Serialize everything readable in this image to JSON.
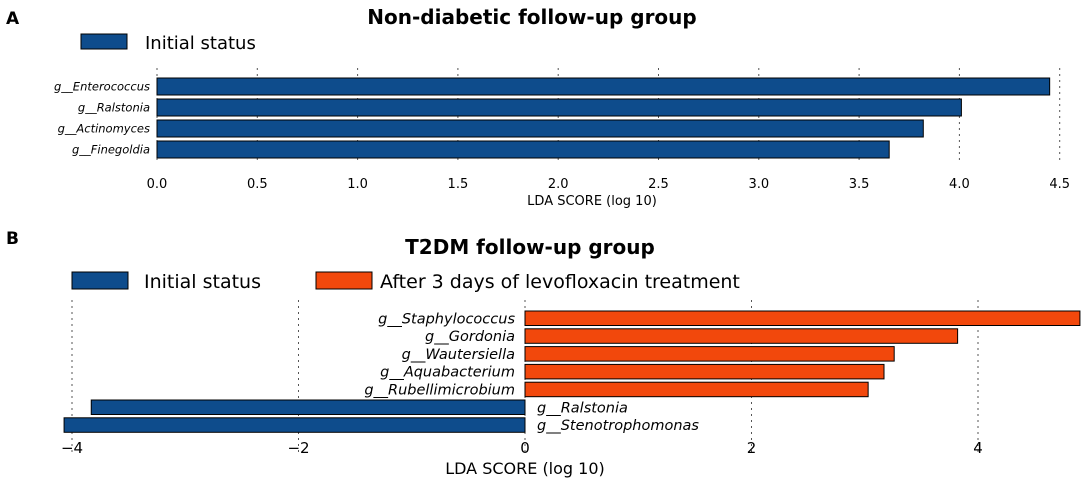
{
  "chart_data": [
    {
      "panel": "A",
      "type": "bar",
      "orientation": "horizontal",
      "title": "Non-diabetic follow-up group",
      "xlabel": "LDA SCORE (log 10)",
      "ylabel": "",
      "xlim": [
        0,
        4.5
      ],
      "xticks": [
        "0.0",
        "0.5",
        "1.0",
        "1.5",
        "2.0",
        "2.5",
        "3.0",
        "3.5",
        "4.0",
        "4.5"
      ],
      "grid": true,
      "legend": [
        "Initial status"
      ],
      "categories": [
        "g__Enterococcus",
        "g__Ralstonia",
        "g__Actinomyces",
        "g__Finegoldia"
      ],
      "values": [
        4.45,
        4.01,
        3.82,
        3.65
      ],
      "groups": [
        "Initial status",
        "Initial status",
        "Initial status",
        "Initial status"
      ],
      "colors": {
        "Initial status": "#0E4C8C"
      }
    },
    {
      "panel": "B",
      "type": "bar",
      "orientation": "horizontal",
      "title": "T2DM follow-up group",
      "xlabel": "LDA SCORE (log 10)",
      "ylabel": "",
      "xlim": [
        -4.1,
        4.9
      ],
      "xticks": [
        "−4",
        "−2",
        "0",
        "2",
        "4"
      ],
      "grid": true,
      "legend": [
        "Initial status",
        "After 3 days of levofloxacin treatment"
      ],
      "categories": [
        "g__Staphylococcus",
        "g__Gordonia",
        "g__Wautersiella",
        "g__Aquabacterium",
        "g__Rubellimicrobium",
        "g__Ralstonia",
        "g__Stenotrophomonas"
      ],
      "values": [
        4.9,
        3.82,
        3.26,
        3.17,
        3.03,
        -3.83,
        -4.07
      ],
      "groups": [
        "After 3 days of levofloxacin treatment",
        "After 3 days of levofloxacin treatment",
        "After 3 days of levofloxacin treatment",
        "After 3 days of levofloxacin treatment",
        "After 3 days of levofloxacin treatment",
        "Initial status",
        "Initial status"
      ],
      "colors": {
        "Initial status": "#0E4C8C",
        "After 3 days of levofloxacin treatment": "#F2480C"
      }
    }
  ]
}
